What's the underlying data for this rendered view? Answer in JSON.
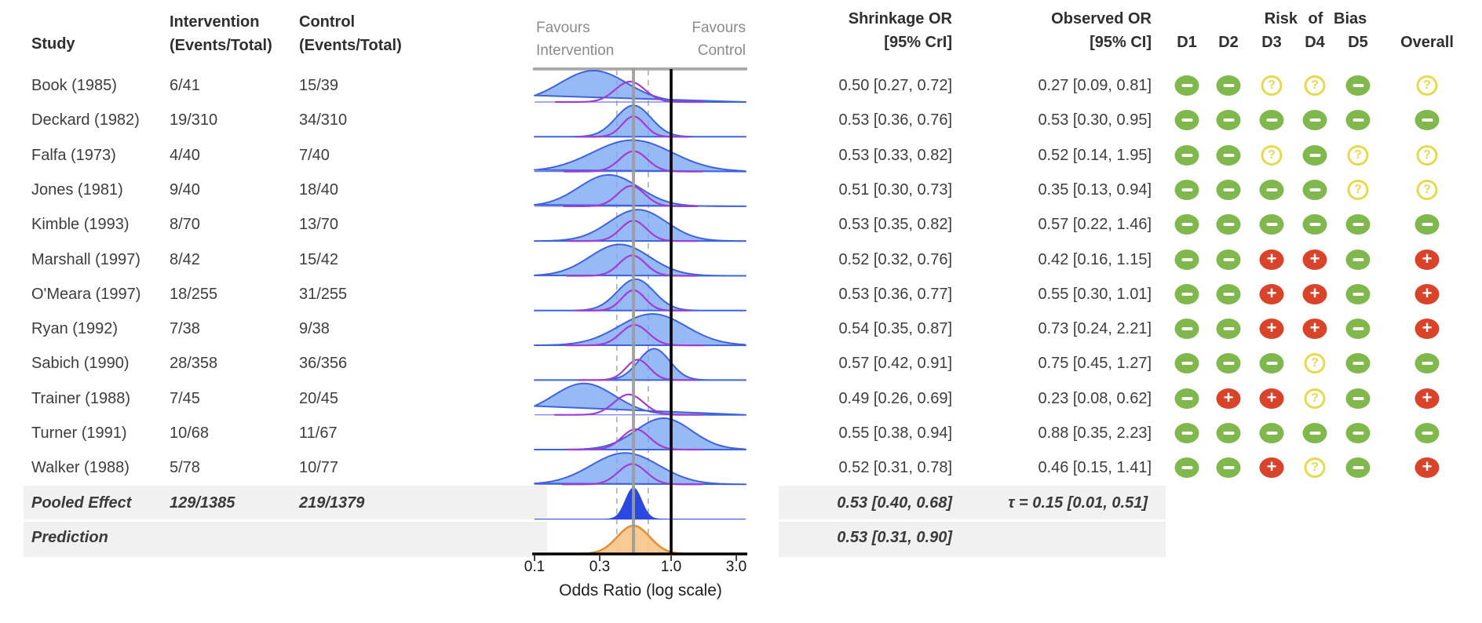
{
  "headers": {
    "study": "Study",
    "intervention_line1": "Intervention",
    "intervention_line2": "(Events/Total)",
    "control_line1": "Control",
    "control_line2": "(Events/Total)",
    "favours_left_line1": "Favours",
    "favours_left_line2": "Intervention",
    "favours_right_line1": "Favours",
    "favours_right_line2": "Control",
    "shrinkage_line1": "Shrinkage OR",
    "shrinkage_line2": "[95% CrI]",
    "observed_line1": "Observed OR",
    "observed_line2": "[95% CI]",
    "rob_title": "Risk of Bias",
    "rob_domains": [
      "D1",
      "D2",
      "D3",
      "D4",
      "D5"
    ],
    "rob_overall": "Overall"
  },
  "colors": {
    "rob_low": "#80b84d",
    "rob_some": "#e7d94e",
    "rob_high": "#d9432a",
    "blue_fill": "#7aa6f5",
    "blue_stroke": "#3f63dc",
    "purple_stroke": "#a23dd0",
    "pooled_fill": "#2b49e0",
    "prediction_fill": "#f7c88b",
    "prediction_stroke": "#e0913e",
    "pooled_line_gray": "#9b9b9b",
    "reference_line_black": "#000000",
    "summary_band": "#f1f1f1"
  },
  "chart_data": {
    "type": "forest_ridgeline",
    "x_scale": "log",
    "xlabel": "Odds Ratio (log scale)",
    "x_ticks": [
      0.1,
      0.3,
      1.0,
      3.0
    ],
    "x_tick_labels": [
      "0.1",
      "0.3",
      "1.0",
      "3.0"
    ],
    "reference_line": 1.0,
    "pooled_center_line": 0.53,
    "pooled_interval_lines": [
      0.4,
      0.68
    ],
    "studies": [
      {
        "study": "Book (1985)",
        "intervention": "6/41",
        "control": "15/39",
        "shrinkage_text": "0.50 [0.27, 0.72]",
        "observed_text": "0.27 [0.09, 0.81]",
        "shrinkage": {
          "or": 0.5,
          "lo": 0.27,
          "hi": 0.72
        },
        "observed": {
          "or": 0.27,
          "lo": 0.09,
          "hi": 0.81
        },
        "rob": [
          "low",
          "low",
          "some",
          "some",
          "low"
        ],
        "rob_overall": "some"
      },
      {
        "study": "Deckard (1982)",
        "intervention": "19/310",
        "control": "34/310",
        "shrinkage_text": "0.53 [0.36, 0.76]",
        "observed_text": "0.53 [0.30, 0.95]",
        "shrinkage": {
          "or": 0.53,
          "lo": 0.36,
          "hi": 0.76
        },
        "observed": {
          "or": 0.53,
          "lo": 0.3,
          "hi": 0.95
        },
        "rob": [
          "low",
          "low",
          "low",
          "low",
          "low"
        ],
        "rob_overall": "low"
      },
      {
        "study": "Falfa (1973)",
        "intervention": "4/40",
        "control": "7/40",
        "shrinkage_text": "0.53 [0.33, 0.82]",
        "observed_text": "0.52 [0.14, 1.95]",
        "shrinkage": {
          "or": 0.53,
          "lo": 0.33,
          "hi": 0.82
        },
        "observed": {
          "or": 0.52,
          "lo": 0.14,
          "hi": 1.95
        },
        "rob": [
          "low",
          "low",
          "some",
          "low",
          "some"
        ],
        "rob_overall": "some"
      },
      {
        "study": "Jones (1981)",
        "intervention": "9/40",
        "control": "18/40",
        "shrinkage_text": "0.51 [0.30, 0.73]",
        "observed_text": "0.35 [0.13, 0.94]",
        "shrinkage": {
          "or": 0.51,
          "lo": 0.3,
          "hi": 0.73
        },
        "observed": {
          "or": 0.35,
          "lo": 0.13,
          "hi": 0.94
        },
        "rob": [
          "low",
          "low",
          "low",
          "low",
          "some"
        ],
        "rob_overall": "some"
      },
      {
        "study": "Kimble (1993)",
        "intervention": "8/70",
        "control": "13/70",
        "shrinkage_text": "0.53 [0.35, 0.82]",
        "observed_text": "0.57 [0.22, 1.46]",
        "shrinkage": {
          "or": 0.53,
          "lo": 0.35,
          "hi": 0.82
        },
        "observed": {
          "or": 0.57,
          "lo": 0.22,
          "hi": 1.46
        },
        "rob": [
          "low",
          "low",
          "low",
          "low",
          "low"
        ],
        "rob_overall": "low"
      },
      {
        "study": "Marshall (1997)",
        "intervention": "8/42",
        "control": "15/42",
        "shrinkage_text": "0.52 [0.32, 0.76]",
        "observed_text": "0.42 [0.16, 1.15]",
        "shrinkage": {
          "or": 0.52,
          "lo": 0.32,
          "hi": 0.76
        },
        "observed": {
          "or": 0.42,
          "lo": 0.16,
          "hi": 1.15
        },
        "rob": [
          "low",
          "low",
          "high",
          "high",
          "low"
        ],
        "rob_overall": "high"
      },
      {
        "study": "O'Meara (1997)",
        "intervention": "18/255",
        "control": "31/255",
        "shrinkage_text": "0.53 [0.36, 0.77]",
        "observed_text": "0.55 [0.30, 1.01]",
        "shrinkage": {
          "or": 0.53,
          "lo": 0.36,
          "hi": 0.77
        },
        "observed": {
          "or": 0.55,
          "lo": 0.3,
          "hi": 1.01
        },
        "rob": [
          "low",
          "low",
          "high",
          "high",
          "low"
        ],
        "rob_overall": "high"
      },
      {
        "study": "Ryan (1992)",
        "intervention": "7/38",
        "control": "9/38",
        "shrinkage_text": "0.54 [0.35, 0.87]",
        "observed_text": "0.73 [0.24, 2.21]",
        "shrinkage": {
          "or": 0.54,
          "lo": 0.35,
          "hi": 0.87
        },
        "observed": {
          "or": 0.73,
          "lo": 0.24,
          "hi": 2.21
        },
        "rob": [
          "low",
          "low",
          "high",
          "high",
          "low"
        ],
        "rob_overall": "high"
      },
      {
        "study": "Sabich (1990)",
        "intervention": "28/358",
        "control": "36/356",
        "shrinkage_text": "0.57 [0.42, 0.91]",
        "observed_text": "0.75 [0.45, 1.27]",
        "shrinkage": {
          "or": 0.57,
          "lo": 0.42,
          "hi": 0.91
        },
        "observed": {
          "or": 0.75,
          "lo": 0.45,
          "hi": 1.27
        },
        "rob": [
          "low",
          "low",
          "low",
          "some",
          "low"
        ],
        "rob_overall": "low"
      },
      {
        "study": "Trainer (1988)",
        "intervention": "7/45",
        "control": "20/45",
        "shrinkage_text": "0.49 [0.26, 0.69]",
        "observed_text": "0.23 [0.08, 0.62]",
        "shrinkage": {
          "or": 0.49,
          "lo": 0.26,
          "hi": 0.69
        },
        "observed": {
          "or": 0.23,
          "lo": 0.08,
          "hi": 0.62
        },
        "rob": [
          "low",
          "high",
          "high",
          "some",
          "low"
        ],
        "rob_overall": "high"
      },
      {
        "study": "Turner (1991)",
        "intervention": "10/68",
        "control": "11/67",
        "shrinkage_text": "0.55 [0.38, 0.94]",
        "observed_text": "0.88 [0.35, 2.23]",
        "shrinkage": {
          "or": 0.55,
          "lo": 0.38,
          "hi": 0.94
        },
        "observed": {
          "or": 0.88,
          "lo": 0.35,
          "hi": 2.23
        },
        "rob": [
          "low",
          "low",
          "low",
          "low",
          "low"
        ],
        "rob_overall": "low"
      },
      {
        "study": "Walker (1988)",
        "intervention": "5/78",
        "control": "10/77",
        "shrinkage_text": "0.52 [0.31, 0.78]",
        "observed_text": "0.46 [0.15, 1.41]",
        "shrinkage": {
          "or": 0.52,
          "lo": 0.31,
          "hi": 0.78
        },
        "observed": {
          "or": 0.46,
          "lo": 0.15,
          "hi": 1.41
        },
        "rob": [
          "low",
          "low",
          "high",
          "some",
          "low"
        ],
        "rob_overall": "high"
      }
    ],
    "pooled": {
      "study": "Pooled Effect",
      "intervention": "129/1385",
      "control": "219/1379",
      "estimate_text": "0.53 [0.40, 0.68]",
      "tau_text": "τ = 0.15 [0.01, 0.51]",
      "estimate": {
        "or": 0.53,
        "lo": 0.4,
        "hi": 0.68
      }
    },
    "prediction": {
      "study": "Prediction",
      "estimate_text": "0.53 [0.31, 0.90]",
      "estimate": {
        "or": 0.53,
        "lo": 0.31,
        "hi": 0.9
      }
    }
  }
}
